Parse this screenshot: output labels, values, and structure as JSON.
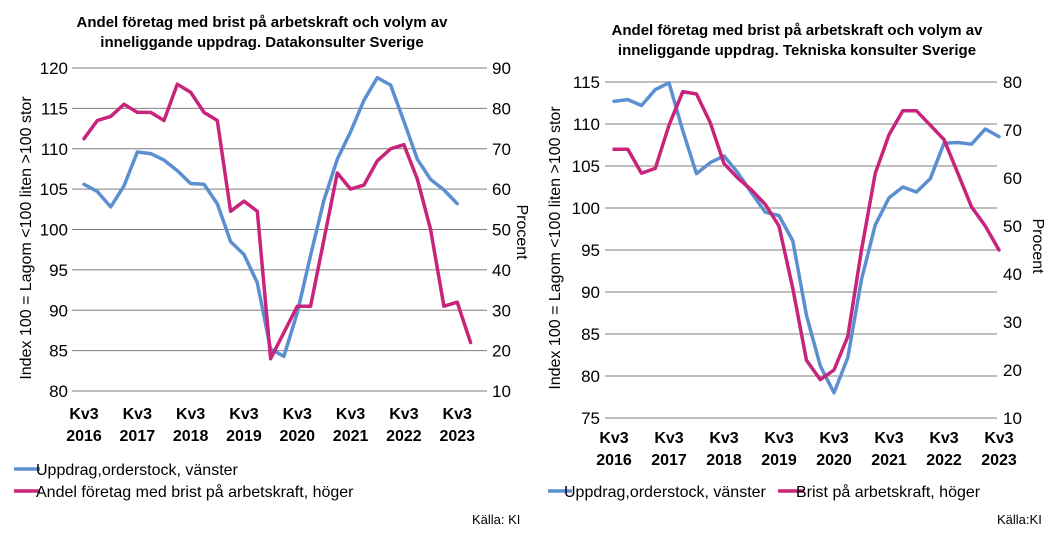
{
  "colors": {
    "blue": "#5b8fd0",
    "magenta": "#c8247c",
    "grid": "#7f7f7f"
  },
  "chart_data": [
    {
      "type": "line",
      "title_lines": [
        "Andel företag med brist på arbetskraft och volym av",
        "inneliggande uppdrag. Datakonsulter Sverige"
      ],
      "ylabel": "Index 100 = Lagom <100  liten >100 stor",
      "y2label": "Procent",
      "ylim": [
        80,
        120
      ],
      "yticks": [
        80,
        85,
        90,
        95,
        100,
        105,
        110,
        115,
        120
      ],
      "y2lim": [
        10,
        90
      ],
      "y2ticks": [
        10,
        20,
        30,
        40,
        50,
        60,
        70,
        80,
        90
      ],
      "grid": true,
      "x_ticks": [
        {
          "top": "Kv3",
          "bottom": "2016"
        },
        {
          "top": "Kv3",
          "bottom": "2017"
        },
        {
          "top": "Kv3",
          "bottom": "2018"
        },
        {
          "top": "Kv3",
          "bottom": "2019"
        },
        {
          "top": "Kv3",
          "bottom": "2020"
        },
        {
          "top": "Kv3",
          "bottom": "2021"
        },
        {
          "top": "Kv3",
          "bottom": "2022"
        },
        {
          "top": "Kv3",
          "bottom": "2023"
        }
      ],
      "x": [
        "2016Q3",
        "2016Q4",
        "2017Q1",
        "2017Q2",
        "2017Q3",
        "2017Q4",
        "2018Q1",
        "2018Q2",
        "2018Q3",
        "2018Q4",
        "2019Q1",
        "2019Q2",
        "2019Q3",
        "2019Q4",
        "2020Q1",
        "2020Q2",
        "2020Q3",
        "2020Q4",
        "2021Q1",
        "2021Q2",
        "2021Q3",
        "2021Q4",
        "2022Q1",
        "2022Q2",
        "2022Q3",
        "2022Q4",
        "2023Q1",
        "2023Q2",
        "2023Q3",
        "2023Q4"
      ],
      "series": [
        {
          "name": "Uppdrag,orderstock, vänster",
          "axis": "left",
          "color": "#5b8fd0",
          "values": [
            105.6,
            104.7,
            102.8,
            105.4,
            109.6,
            109.4,
            108.6,
            107.3,
            105.7,
            105.6,
            103.2,
            98.5,
            96.9,
            93.4,
            85.2,
            84.3,
            89.7,
            96.8,
            103.6,
            108.7,
            112.1,
            116.0,
            118.8,
            117.9,
            113.4,
            108.7,
            106.2,
            104.9,
            103.2,
            null
          ]
        },
        {
          "name": "Andel företag med brist på arbetskraft, höger",
          "axis": "right",
          "color": "#c8247c",
          "values": [
            72.5,
            77.0,
            78.0,
            81.0,
            79.0,
            79.0,
            77.0,
            86.0,
            84.0,
            79.0,
            77.0,
            54.5,
            57.0,
            54.5,
            18.0,
            24.5,
            31.0,
            31.0,
            null,
            64.0,
            60.0,
            61.0,
            67.0,
            70.0,
            71.0,
            62.5,
            50.0,
            31.0,
            32.0,
            22.0
          ]
        }
      ],
      "legend_position": "bottom-left"
    },
    {
      "type": "line",
      "title_lines": [
        "Andel företag med brist på arbetskraft och volym av",
        "inneliggande uppdrag. Tekniska konsulter Sverige"
      ],
      "ylabel": "Index 100 = Lagom <100  liten >100 stor",
      "y2label": "Procent",
      "ylim": [
        75,
        115
      ],
      "yticks": [
        75,
        80,
        85,
        90,
        95,
        100,
        105,
        110,
        115
      ],
      "y2lim": [
        10,
        80
      ],
      "y2ticks": [
        10,
        20,
        30,
        40,
        50,
        60,
        70,
        80
      ],
      "grid": true,
      "x_ticks": [
        {
          "top": "Kv3",
          "bottom": "2016"
        },
        {
          "top": "Kv3",
          "bottom": "2017"
        },
        {
          "top": "Kv3",
          "bottom": "2018"
        },
        {
          "top": "Kv3",
          "bottom": "2019"
        },
        {
          "top": "Kv3",
          "bottom": "2020"
        },
        {
          "top": "Kv3",
          "bottom": "2021"
        },
        {
          "top": "Kv3",
          "bottom": "2022"
        },
        {
          "top": "Kv3",
          "bottom": "2023"
        }
      ],
      "x": [
        "2016Q3",
        "2016Q4",
        "2017Q1",
        "2017Q2",
        "2017Q3",
        "2017Q4",
        "2018Q1",
        "2018Q2",
        "2018Q3",
        "2018Q4",
        "2019Q1",
        "2019Q2",
        "2019Q3",
        "2019Q4",
        "2020Q1",
        "2020Q2",
        "2020Q3",
        "2020Q4",
        "2021Q1",
        "2021Q2",
        "2021Q3",
        "2021Q4",
        "2022Q1",
        "2022Q2",
        "2022Q3",
        "2022Q4",
        "2023Q1",
        "2023Q2",
        "2023Q3",
        "2023Q4"
      ],
      "series": [
        {
          "name": "Uppdrag,orderstock, vänster",
          "axis": "left",
          "color": "#5b8fd0",
          "values": [
            112.7,
            112.9,
            112.2,
            114.1,
            114.9,
            109.2,
            104.1,
            105.4,
            106.2,
            104.2,
            101.8,
            99.5,
            99.1,
            96.1,
            87.2,
            81.2,
            78.0,
            82.2,
            91.5,
            98.0,
            101.2,
            102.5,
            101.9,
            103.5,
            107.7,
            107.8,
            107.6,
            109.4,
            108.5,
            null
          ]
        },
        {
          "name": "Brist på arbetskraft, höger",
          "axis": "right",
          "color": "#c8247c",
          "values": [
            66.0,
            66.0,
            61.0,
            62.0,
            71.0,
            78.0,
            77.5,
            71.5,
            63.0,
            60.0,
            57.5,
            54.5,
            50.0,
            37.0,
            22.0,
            18.0,
            20.0,
            27.0,
            45.0,
            61.0,
            69.0,
            74.0,
            74.0,
            71.0,
            68.0,
            61.0,
            54.0,
            50.0,
            45.0,
            null
          ]
        }
      ],
      "legend_position": "bottom"
    }
  ],
  "source_left": "Källa: KI",
  "source_right": "Källa:KI"
}
